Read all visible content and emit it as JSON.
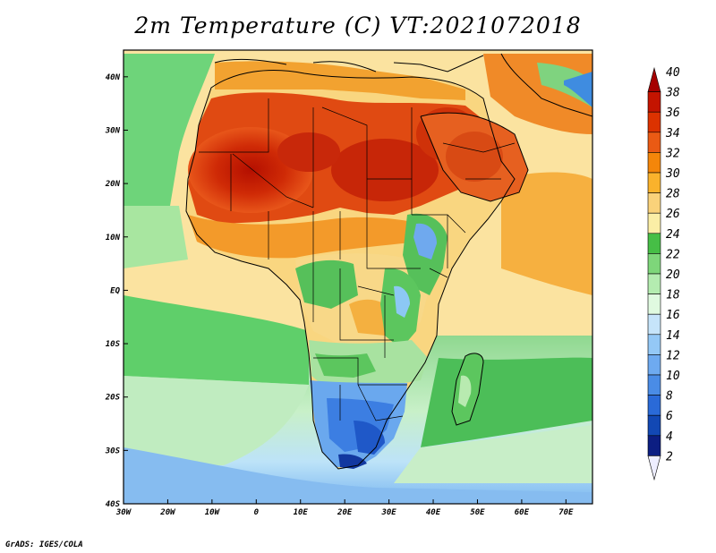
{
  "title": "2m Temperature (C) VT:2021072018",
  "credit": "GrADS: IGES/COLA",
  "map": {
    "lon_range": [
      -30,
      76
    ],
    "lat_range": [
      -40,
      45
    ],
    "x_ticks": [
      "30W",
      "20W",
      "10W",
      "0",
      "10E",
      "20E",
      "30E",
      "40E",
      "50E",
      "60E",
      "70E"
    ],
    "x_tick_values": [
      -30,
      -20,
      -10,
      0,
      10,
      20,
      30,
      40,
      50,
      60,
      70
    ],
    "y_ticks": [
      "40N",
      "30N",
      "20N",
      "10N",
      "EQ",
      "10S",
      "20S",
      "30S",
      "40S"
    ],
    "y_tick_values": [
      40,
      30,
      20,
      10,
      0,
      -10,
      -20,
      -30,
      -40
    ]
  },
  "colorbar": {
    "labels": [
      "40",
      "38",
      "36",
      "34",
      "32",
      "30",
      "28",
      "26",
      "24",
      "22",
      "20",
      "18",
      "16",
      "14",
      "12",
      "10",
      "8",
      "6",
      "4",
      "2"
    ],
    "colors": [
      "#a50000",
      "#c41400",
      "#dc3200",
      "#ea5a14",
      "#f4860a",
      "#fab22c",
      "#fad27a",
      "#fbeea6",
      "#46be46",
      "#7ed67a",
      "#b4ecb0",
      "#e0fae0",
      "#c6e4fa",
      "#94c8f6",
      "#6eaaf0",
      "#4a8ce6",
      "#2a6ad8",
      "#1248b4",
      "#0c1e82",
      "#eeeeff"
    ]
  }
}
